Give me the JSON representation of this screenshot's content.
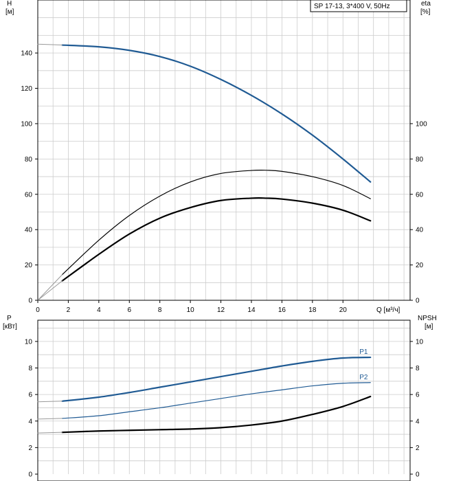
{
  "legend": {
    "text": "SP 17-13, 3*400 V, 50Hz"
  },
  "colors": {
    "blue": "#1f5a93",
    "black": "#000000",
    "grid": "#cccccc",
    "thin_grey": "#999999"
  },
  "chart_data": [
    {
      "type": "line",
      "name": "upper",
      "xlabel": "Q [м³/ч]",
      "ylabel_left": [
        "H",
        "[м]"
      ],
      "ylabel_right": [
        "eta",
        "[%]"
      ],
      "x_ticks": [
        0,
        2,
        4,
        6,
        8,
        10,
        12,
        14,
        16,
        18,
        20
      ],
      "xlim": [
        0,
        24.4
      ],
      "ylim": [
        0,
        170
      ],
      "y_ticks_left": [
        0,
        20,
        40,
        60,
        80,
        100,
        120,
        140
      ],
      "y_ticks_right": [
        0,
        20,
        40,
        60,
        80,
        100
      ],
      "grid": true,
      "series": [
        {
          "key": "H",
          "color": "#1f5a93",
          "width": 2.2,
          "x": [
            1.6,
            4,
            6,
            8,
            10,
            12,
            14,
            16,
            18,
            20,
            21.8
          ],
          "y": [
            144.5,
            143.5,
            141.5,
            138,
            132.5,
            125,
            116,
            105.5,
            93.5,
            80,
            67
          ]
        },
        {
          "key": "H_ext",
          "color": "#999999",
          "width": 1,
          "x": [
            0,
            1.6
          ],
          "y": [
            145,
            144.5
          ]
        },
        {
          "key": "eta_total",
          "color": "#000000",
          "width": 1.2,
          "x": [
            1.6,
            4,
            6,
            8,
            10,
            12,
            14,
            15,
            16,
            18,
            20,
            21.8
          ],
          "y": [
            14.5,
            34,
            48,
            59,
            67,
            71.8,
            73.5,
            73.6,
            73,
            70,
            65,
            57.5
          ]
        },
        {
          "key": "eta_pump",
          "color": "#000000",
          "width": 2.2,
          "x": [
            1.6,
            4,
            6,
            8,
            10,
            12,
            14,
            15,
            16,
            18,
            20,
            21.8
          ],
          "y": [
            11,
            26,
            37.5,
            46.5,
            52.5,
            56.5,
            57.8,
            57.8,
            57.3,
            55,
            51,
            45
          ]
        },
        {
          "key": "eta_ext1",
          "color": "#999999",
          "width": 1,
          "x": [
            0,
            1.6
          ],
          "y": [
            0,
            14.5
          ]
        },
        {
          "key": "eta_ext2",
          "color": "#999999",
          "width": 1,
          "x": [
            0,
            1.6
          ],
          "y": [
            0,
            11
          ]
        }
      ]
    },
    {
      "type": "line",
      "name": "lower",
      "ylabel_left": [
        "P",
        "[кВт]"
      ],
      "ylabel_right": [
        "NPSH",
        "[м]"
      ],
      "xlim": [
        0,
        24.4
      ],
      "ylim": [
        0,
        11.6
      ],
      "y_ticks_left": [
        0,
        2,
        4,
        6,
        8,
        10
      ],
      "y_ticks_right": [
        0,
        2,
        4,
        6,
        8,
        10
      ],
      "grid": true,
      "series": [
        {
          "key": "P1",
          "label": "P1",
          "color": "#1f5a93",
          "width": 2.2,
          "x": [
            1.6,
            4,
            6,
            8,
            10,
            12,
            14,
            16,
            18,
            20,
            21.8
          ],
          "y": [
            5.5,
            5.8,
            6.15,
            6.55,
            6.95,
            7.35,
            7.75,
            8.15,
            8.5,
            8.75,
            8.8
          ]
        },
        {
          "key": "P1_ext",
          "color": "#999999",
          "width": 1,
          "x": [
            0,
            1.6
          ],
          "y": [
            5.45,
            5.5
          ]
        },
        {
          "key": "P2",
          "label": "P2",
          "color": "#1f5a93",
          "width": 1.2,
          "x": [
            1.6,
            4,
            6,
            8,
            10,
            12,
            14,
            16,
            18,
            20,
            21.8
          ],
          "y": [
            4.2,
            4.4,
            4.7,
            5.0,
            5.35,
            5.7,
            6.05,
            6.35,
            6.65,
            6.85,
            6.9
          ]
        },
        {
          "key": "P2_ext",
          "color": "#999999",
          "width": 1,
          "x": [
            0,
            1.6
          ],
          "y": [
            4.15,
            4.2
          ]
        },
        {
          "key": "NPSH",
          "color": "#000000",
          "width": 2.2,
          "x": [
            1.6,
            4,
            6,
            8,
            10,
            12,
            14,
            16,
            18,
            20,
            21.8
          ],
          "y": [
            3.15,
            3.25,
            3.3,
            3.35,
            3.4,
            3.5,
            3.7,
            4.0,
            4.5,
            5.1,
            5.85
          ]
        },
        {
          "key": "NPSH_ext",
          "color": "#999999",
          "width": 1,
          "x": [
            0,
            1.6
          ],
          "y": [
            3.1,
            3.15
          ]
        }
      ]
    }
  ]
}
